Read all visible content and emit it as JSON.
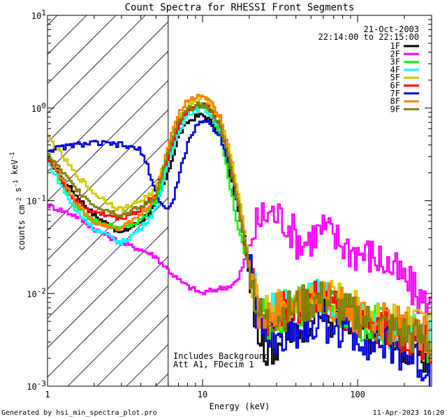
{
  "chart_data": {
    "type": "line",
    "title": "Count Spectra for RHESSI Front Segments",
    "xlabel": "Energy (keV)",
    "ylabel": "counts cm^-2 s^-1 keV^-1",
    "xscale": "log",
    "yscale": "log",
    "xlim": [
      1,
      300
    ],
    "ylim": [
      0.001,
      10
    ],
    "x_tick_labels": [
      "1",
      "10",
      "100"
    ],
    "y_tick_labels": [
      {
        "base": "10",
        "exp": "-3"
      },
      {
        "base": "10",
        "exp": "-2"
      },
      {
        "base": "10",
        "exp": "-1"
      },
      {
        "base": "10",
        "exp": "0"
      },
      {
        "base": "10",
        "exp": "1"
      }
    ],
    "shaded_region_upper_keV": 6,
    "date": "21-Oct-2003",
    "time_range": "22:14:00 to 22:15:00",
    "annotations": [
      "Includes Background",
      "Att A1, FDecim 1"
    ],
    "series": [
      {
        "name": "1F",
        "color": "#000000",
        "points": [
          [
            1,
            0.28
          ],
          [
            1.5,
            0.12
          ],
          [
            2,
            0.07
          ],
          [
            3,
            0.045
          ],
          [
            4,
            0.06
          ],
          [
            5,
            0.09
          ],
          [
            6,
            0.2
          ],
          [
            7,
            0.5
          ],
          [
            8,
            0.7
          ],
          [
            9,
            0.8
          ],
          [
            10,
            0.85
          ],
          [
            11,
            0.75
          ],
          [
            13,
            0.5
          ],
          [
            15,
            0.2
          ],
          [
            17,
            0.08
          ],
          [
            19,
            0.03
          ],
          [
            21,
            0.01
          ],
          [
            23,
            0.004
          ],
          [
            26,
            0.0025
          ],
          [
            30,
            0.003
          ],
          [
            35,
            0.0035
          ],
          [
            40,
            0.004
          ],
          [
            50,
            0.006
          ],
          [
            60,
            0.0065
          ],
          [
            70,
            0.005
          ],
          [
            80,
            0.0045
          ],
          [
            100,
            0.004
          ],
          [
            130,
            0.0035
          ],
          [
            170,
            0.003
          ],
          [
            220,
            0.0025
          ],
          [
            280,
            0.002
          ]
        ]
      },
      {
        "name": "2F",
        "color": "#ff00ff",
        "points": [
          [
            1,
            0.09
          ],
          [
            1.5,
            0.07
          ],
          [
            2,
            0.05
          ],
          [
            3,
            0.035
          ],
          [
            4,
            0.03
          ],
          [
            5,
            0.025
          ],
          [
            6,
            0.018
          ],
          [
            7,
            0.014
          ],
          [
            8,
            0.012
          ],
          [
            10,
            0.01
          ],
          [
            12,
            0.011
          ],
          [
            15,
            0.012
          ],
          [
            17,
            0.014
          ],
          [
            19,
            0.025
          ],
          [
            21,
            0.045
          ],
          [
            24,
            0.065
          ],
          [
            27,
            0.075
          ],
          [
            30,
            0.07
          ],
          [
            35,
            0.06
          ],
          [
            40,
            0.04
          ],
          [
            45,
            0.035
          ],
          [
            50,
            0.04
          ],
          [
            55,
            0.045
          ],
          [
            60,
            0.05
          ],
          [
            65,
            0.045
          ],
          [
            70,
            0.04
          ],
          [
            80,
            0.035
          ],
          [
            90,
            0.03
          ],
          [
            100,
            0.028
          ],
          [
            130,
            0.025
          ],
          [
            160,
            0.02
          ],
          [
            200,
            0.014
          ],
          [
            240,
            0.01
          ],
          [
            280,
            0.007
          ]
        ]
      },
      {
        "name": "3F",
        "color": "#00ff00",
        "points": [
          [
            1,
            0.32
          ],
          [
            1.5,
            0.09
          ],
          [
            2,
            0.06
          ],
          [
            3,
            0.05
          ],
          [
            4,
            0.06
          ],
          [
            5,
            0.1
          ],
          [
            6,
            0.28
          ],
          [
            7,
            0.6
          ],
          [
            8,
            0.9
          ],
          [
            9,
            1.0
          ],
          [
            10,
            1.1
          ],
          [
            11,
            0.95
          ],
          [
            13,
            0.55
          ],
          [
            15,
            0.15
          ],
          [
            17,
            0.05
          ],
          [
            19,
            0.025
          ],
          [
            21,
            0.015
          ],
          [
            23,
            0.006
          ],
          [
            26,
            0.005
          ],
          [
            30,
            0.0055
          ],
          [
            35,
            0.006
          ],
          [
            40,
            0.007
          ],
          [
            50,
            0.008
          ],
          [
            60,
            0.0085
          ],
          [
            70,
            0.007
          ],
          [
            80,
            0.006
          ],
          [
            100,
            0.005
          ],
          [
            130,
            0.0045
          ],
          [
            170,
            0.004
          ],
          [
            220,
            0.0035
          ],
          [
            280,
            0.003
          ]
        ]
      },
      {
        "name": "4F",
        "color": "#00ffff",
        "points": [
          [
            1,
            0.27
          ],
          [
            1.5,
            0.08
          ],
          [
            2,
            0.05
          ],
          [
            3,
            0.035
          ],
          [
            4,
            0.05
          ],
          [
            5,
            0.08
          ],
          [
            6,
            0.24
          ],
          [
            7,
            0.55
          ],
          [
            8,
            0.85
          ],
          [
            9,
            0.95
          ],
          [
            10,
            1.0
          ],
          [
            11,
            0.9
          ],
          [
            13,
            0.6
          ],
          [
            15,
            0.25
          ],
          [
            17,
            0.09
          ],
          [
            19,
            0.035
          ],
          [
            21,
            0.015
          ],
          [
            23,
            0.008
          ],
          [
            26,
            0.006
          ],
          [
            30,
            0.0065
          ],
          [
            35,
            0.007
          ],
          [
            40,
            0.0075
          ],
          [
            50,
            0.0085
          ],
          [
            60,
            0.009
          ],
          [
            70,
            0.008
          ],
          [
            80,
            0.007
          ],
          [
            100,
            0.006
          ],
          [
            130,
            0.005
          ],
          [
            170,
            0.0045
          ],
          [
            220,
            0.004
          ],
          [
            280,
            0.0035
          ]
        ]
      },
      {
        "name": "5F",
        "color": "#cccc00",
        "points": [
          [
            1,
            0.5
          ],
          [
            1.5,
            0.2
          ],
          [
            2,
            0.12
          ],
          [
            3,
            0.08
          ],
          [
            4,
            0.1
          ],
          [
            5,
            0.13
          ],
          [
            6,
            0.35
          ],
          [
            7,
            0.8
          ],
          [
            8,
            1.1
          ],
          [
            9,
            1.2
          ],
          [
            10,
            1.3
          ],
          [
            11,
            1.2
          ],
          [
            13,
            0.75
          ],
          [
            15,
            0.35
          ],
          [
            17,
            0.12
          ],
          [
            19,
            0.04
          ],
          [
            21,
            0.015
          ],
          [
            23,
            0.007
          ],
          [
            26,
            0.006
          ],
          [
            30,
            0.007
          ],
          [
            35,
            0.0075
          ],
          [
            40,
            0.008
          ],
          [
            50,
            0.009
          ],
          [
            60,
            0.0095
          ],
          [
            70,
            0.0085
          ],
          [
            80,
            0.0075
          ],
          [
            100,
            0.0065
          ],
          [
            130,
            0.0055
          ],
          [
            170,
            0.005
          ],
          [
            220,
            0.0045
          ],
          [
            280,
            0.004
          ]
        ]
      },
      {
        "name": "6F",
        "color": "#ff0000",
        "points": [
          [
            1,
            0.3
          ],
          [
            1.5,
            0.1
          ],
          [
            2,
            0.075
          ],
          [
            3,
            0.065
          ],
          [
            4,
            0.08
          ],
          [
            5,
            0.12
          ],
          [
            6,
            0.3
          ],
          [
            7,
            0.65
          ],
          [
            8,
            0.95
          ],
          [
            9,
            1.05
          ],
          [
            10,
            1.15
          ],
          [
            11,
            1.0
          ],
          [
            13,
            0.65
          ],
          [
            15,
            0.25
          ],
          [
            17,
            0.09
          ],
          [
            19,
            0.03
          ],
          [
            21,
            0.012
          ],
          [
            23,
            0.006
          ],
          [
            26,
            0.005
          ],
          [
            30,
            0.006
          ],
          [
            35,
            0.0065
          ],
          [
            40,
            0.007
          ],
          [
            50,
            0.008
          ],
          [
            60,
            0.0085
          ],
          [
            70,
            0.0075
          ],
          [
            80,
            0.0065
          ],
          [
            100,
            0.0055
          ],
          [
            130,
            0.0045
          ],
          [
            170,
            0.004
          ],
          [
            220,
            0.0035
          ],
          [
            280,
            0.003
          ]
        ]
      },
      {
        "name": "7F",
        "color": "#0000dd",
        "points": [
          [
            1,
            0.35
          ],
          [
            1.5,
            0.4
          ],
          [
            2,
            0.42
          ],
          [
            3,
            0.4
          ],
          [
            4,
            0.35
          ],
          [
            4.5,
            0.22
          ],
          [
            5,
            0.12
          ],
          [
            5.5,
            0.09
          ],
          [
            6,
            0.08
          ],
          [
            6.5,
            0.1
          ],
          [
            7,
            0.18
          ],
          [
            8,
            0.4
          ],
          [
            9,
            0.6
          ],
          [
            10,
            0.75
          ],
          [
            11,
            0.7
          ],
          [
            13,
            0.5
          ],
          [
            15,
            0.25
          ],
          [
            17,
            0.09
          ],
          [
            19,
            0.035
          ],
          [
            21,
            0.012
          ],
          [
            23,
            0.005
          ],
          [
            26,
            0.0035
          ],
          [
            30,
            0.003
          ],
          [
            35,
            0.0035
          ],
          [
            40,
            0.004
          ],
          [
            50,
            0.0045
          ],
          [
            60,
            0.005
          ],
          [
            70,
            0.0045
          ],
          [
            80,
            0.004
          ],
          [
            100,
            0.0035
          ],
          [
            130,
            0.003
          ],
          [
            170,
            0.0025
          ],
          [
            220,
            0.002
          ],
          [
            280,
            0.0015
          ]
        ]
      },
      {
        "name": "8F",
        "color": "#ff7f00",
        "points": [
          [
            1,
            0.33
          ],
          [
            1.5,
            0.1
          ],
          [
            2,
            0.06
          ],
          [
            3,
            0.05
          ],
          [
            4,
            0.07
          ],
          [
            5,
            0.11
          ],
          [
            6,
            0.4
          ],
          [
            7,
            0.9
          ],
          [
            8,
            1.2
          ],
          [
            9,
            1.3
          ],
          [
            10,
            1.4
          ],
          [
            11,
            1.25
          ],
          [
            13,
            0.8
          ],
          [
            15,
            0.3
          ],
          [
            17,
            0.1
          ],
          [
            19,
            0.035
          ],
          [
            21,
            0.013
          ],
          [
            23,
            0.006
          ],
          [
            26,
            0.0055
          ],
          [
            30,
            0.0065
          ],
          [
            35,
            0.007
          ],
          [
            40,
            0.0075
          ],
          [
            50,
            0.0085
          ],
          [
            60,
            0.009
          ],
          [
            70,
            0.008
          ],
          [
            80,
            0.007
          ],
          [
            100,
            0.006
          ],
          [
            130,
            0.005
          ],
          [
            170,
            0.0045
          ],
          [
            220,
            0.004
          ],
          [
            280,
            0.0035
          ]
        ]
      },
      {
        "name": "9F",
        "color": "#808000",
        "points": [
          [
            1,
            0.32
          ],
          [
            1.5,
            0.14
          ],
          [
            2,
            0.09
          ],
          [
            3,
            0.07
          ],
          [
            4,
            0.085
          ],
          [
            5,
            0.11
          ],
          [
            6,
            0.32
          ],
          [
            7,
            0.7
          ],
          [
            8,
            0.95
          ],
          [
            9,
            1.05
          ],
          [
            10,
            1.1
          ],
          [
            11,
            1.0
          ],
          [
            13,
            0.65
          ],
          [
            15,
            0.25
          ],
          [
            17,
            0.09
          ],
          [
            19,
            0.03
          ],
          [
            21,
            0.012
          ],
          [
            23,
            0.006
          ],
          [
            26,
            0.005
          ],
          [
            30,
            0.006
          ],
          [
            35,
            0.0065
          ],
          [
            40,
            0.007
          ],
          [
            50,
            0.008
          ],
          [
            60,
            0.0085
          ],
          [
            70,
            0.0075
          ],
          [
            80,
            0.0065
          ],
          [
            100,
            0.0055
          ],
          [
            130,
            0.0045
          ],
          [
            170,
            0.004
          ],
          [
            220,
            0.0035
          ],
          [
            280,
            0.003
          ]
        ]
      }
    ]
  },
  "footer": {
    "left": "Generated by hsi_min_spectra_plot.pro",
    "right": "11-Apr-2023 16:20"
  }
}
